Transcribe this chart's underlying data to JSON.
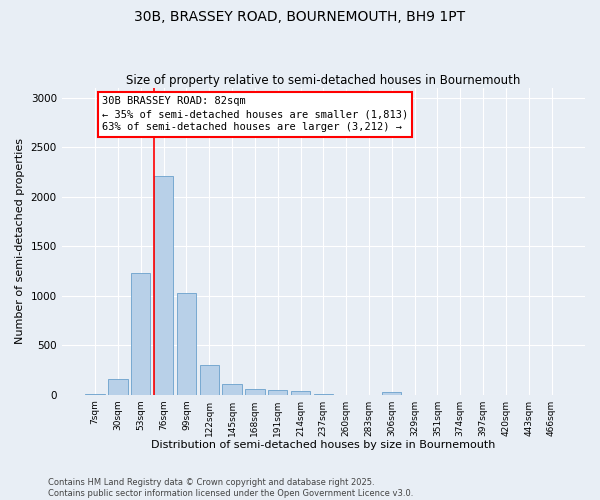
{
  "title": "30B, BRASSEY ROAD, BOURNEMOUTH, BH9 1PT",
  "subtitle": "Size of property relative to semi-detached houses in Bournemouth",
  "xlabel": "Distribution of semi-detached houses by size in Bournemouth",
  "ylabel": "Number of semi-detached properties",
  "footer_line1": "Contains HM Land Registry data © Crown copyright and database right 2025.",
  "footer_line2": "Contains public sector information licensed under the Open Government Licence v3.0.",
  "bar_labels": [
    "7sqm",
    "30sqm",
    "53sqm",
    "76sqm",
    "99sqm",
    "122sqm",
    "145sqm",
    "168sqm",
    "191sqm",
    "214sqm",
    "237sqm",
    "260sqm",
    "283sqm",
    "306sqm",
    "329sqm",
    "351sqm",
    "374sqm",
    "397sqm",
    "420sqm",
    "443sqm",
    "466sqm"
  ],
  "bar_values": [
    10,
    160,
    1230,
    2210,
    1030,
    300,
    105,
    60,
    50,
    35,
    5,
    0,
    0,
    30,
    0,
    0,
    0,
    0,
    0,
    0,
    0
  ],
  "bar_color": "#b8d0e8",
  "bar_edge_color": "#6aa0cc",
  "ylim_max": 3100,
  "yticks": [
    0,
    500,
    1000,
    1500,
    2000,
    2500,
    3000
  ],
  "property_label": "30B BRASSEY ROAD: 82sqm",
  "pct_smaller": 35,
  "pct_larger": 63,
  "n_smaller": 1813,
  "n_larger": 3212,
  "vline_bar_index": 3,
  "bg_color": "#e8eef5",
  "grid_color": "#ffffff",
  "title_fontsize": 10,
  "subtitle_fontsize": 8.5,
  "axis_label_fontsize": 8,
  "tick_fontsize": 6.5,
  "annotation_fontsize": 7.5,
  "footer_fontsize": 6,
  "ylabel_fontsize": 8
}
